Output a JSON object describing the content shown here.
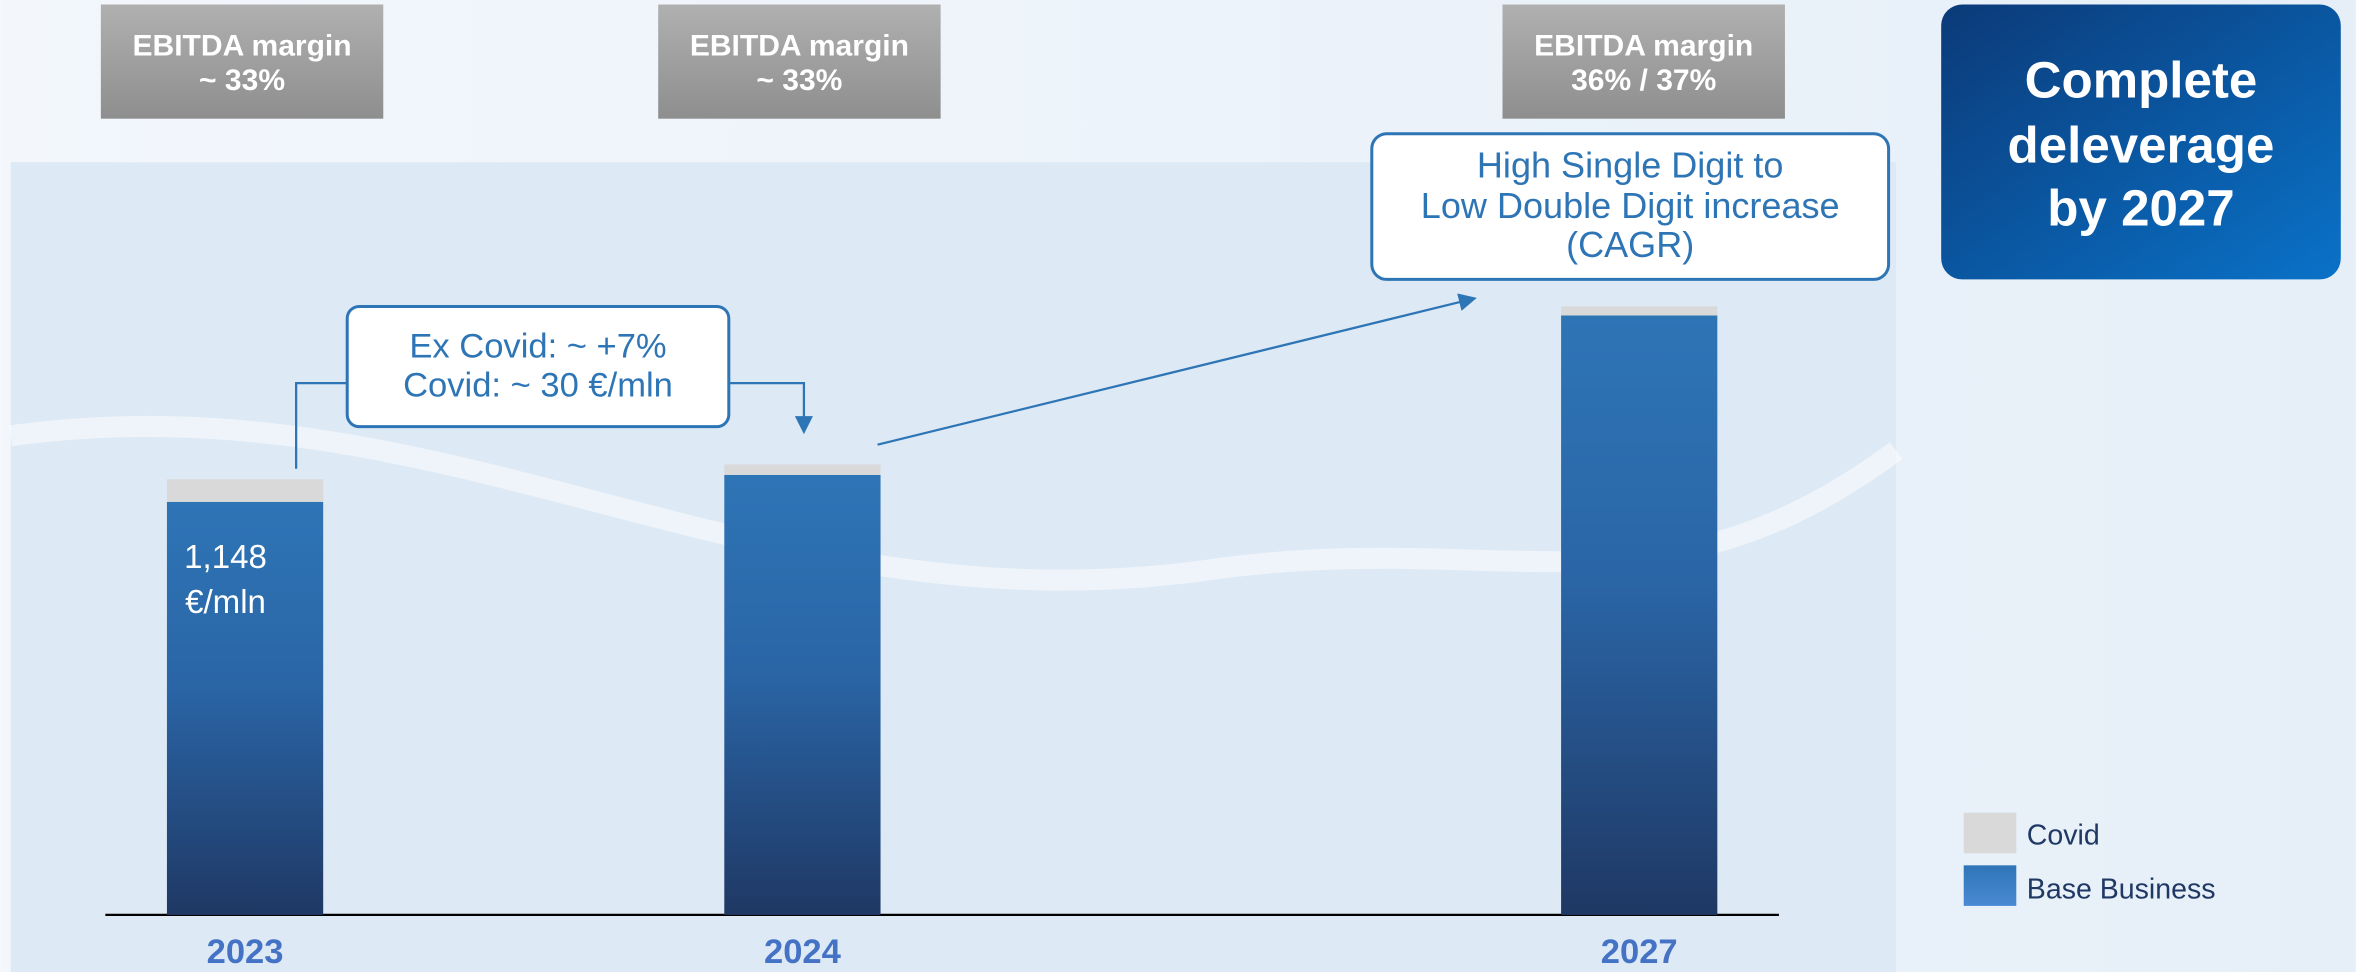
{
  "chart_data": {
    "type": "stacked-bar",
    "categories": [
      "2023",
      "2024",
      "2027"
    ],
    "series": [
      {
        "name": "Base Business",
        "color": "#2e75b6",
        "values": [
          1148,
          1223,
          1666
        ],
        "value_labels": [
          "1,148 €/mln",
          null,
          null
        ]
      },
      {
        "name": "Covid",
        "color": "#d9d9d9",
        "values": [
          63,
          29,
          25
        ]
      }
    ],
    "margin_boxes": [
      {
        "title": "EBITDA margin",
        "value": "~ 33%"
      },
      {
        "title": "EBITDA margin",
        "value": "~ 33%"
      },
      {
        "title": "EBITDA margin",
        "value": "36% / 37%"
      }
    ],
    "growth_callout": [
      "Ex Covid: ~ +7%",
      "Covid: ~ 30 €/mln"
    ],
    "cagr_callout": [
      "High Single Digit to",
      "Low Double Digit increase",
      "(CAGR)"
    ],
    "deleverage_box": [
      "Complete",
      "deleverage",
      "by 2027"
    ],
    "legend": "right"
  }
}
